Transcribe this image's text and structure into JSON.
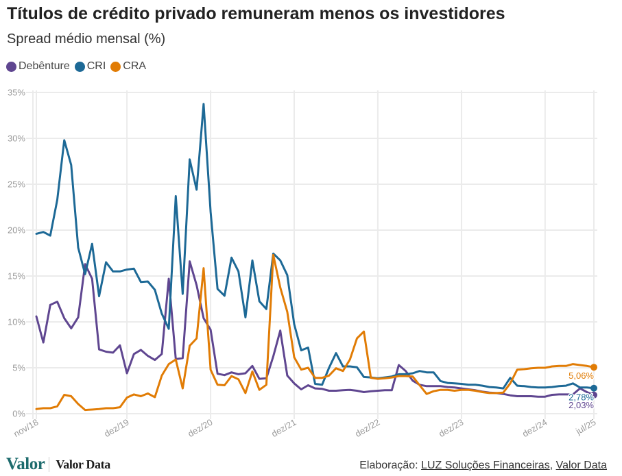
{
  "header": {
    "title": "Títulos de crédito privado remuneram menos os investidores",
    "subtitle": "Spread médio mensal (%)"
  },
  "legend": [
    {
      "label": "Debênture",
      "color": "#5F4690"
    },
    {
      "label": "CRI",
      "color": "#1D6996"
    },
    {
      "label": "CRA",
      "color": "#E17C05"
    }
  ],
  "footer": {
    "prefix": "Elaboração: ",
    "source1": "LUZ Soluções Financeiras",
    "separator": ", ",
    "source2": "Valor Data"
  },
  "branding": {
    "logo_valor": "Valor",
    "logo_valor_data": "Valor Data"
  },
  "chart_data": {
    "type": "line",
    "title": "Títulos de crédito privado remuneram menos os investidores",
    "subtitle": "Spread médio mensal (%)",
    "xlabel": "",
    "ylabel": "",
    "ylim": [
      0,
      35
    ],
    "grid": true,
    "legend_position": "top-left",
    "yticks": [
      0,
      5,
      10,
      15,
      20,
      25,
      30,
      35
    ],
    "ytick_labels": [
      "0%",
      "5%",
      "10%",
      "15%",
      "20%",
      "25%",
      "30%",
      "35%"
    ],
    "xtick_labels": [
      "nov/18",
      "dez/19",
      "dez/20",
      "dez/21",
      "dez/22",
      "dez/23",
      "dez/24",
      "jul/25"
    ],
    "x": [
      "nov/18",
      "dez/18",
      "jan/19",
      "fev/19",
      "mar/19",
      "abr/19",
      "mai/19",
      "jun/19",
      "jul/19",
      "ago/19",
      "set/19",
      "out/19",
      "nov/19",
      "dez/19",
      "jan/20",
      "fev/20",
      "mar/20",
      "abr/20",
      "mai/20",
      "jun/20",
      "jul/20",
      "ago/20",
      "set/20",
      "out/20",
      "nov/20",
      "dez/20",
      "jan/21",
      "fev/21",
      "mar/21",
      "abr/21",
      "mai/21",
      "jun/21",
      "jul/21",
      "ago/21",
      "set/21",
      "out/21",
      "nov/21",
      "dez/21",
      "jan/22",
      "fev/22",
      "mar/22",
      "abr/22",
      "mai/22",
      "jun/22",
      "jul/22",
      "ago/22",
      "set/22",
      "out/22",
      "nov/22",
      "dez/22",
      "jan/23",
      "fev/23",
      "mar/23",
      "abr/23",
      "mai/23",
      "jun/23",
      "jul/23",
      "ago/23",
      "set/23",
      "out/23",
      "nov/23",
      "dez/23",
      "jan/24",
      "fev/24",
      "mar/24",
      "abr/24",
      "mai/24",
      "jun/24",
      "jul/24",
      "ago/24",
      "set/24",
      "out/24",
      "nov/24",
      "dez/24",
      "jan/25",
      "fev/25",
      "mar/25",
      "abr/25",
      "mai/25",
      "jun/25",
      "jul/25"
    ],
    "series": [
      {
        "name": "Debênture",
        "color": "#5F4690",
        "end_label": "2,03%",
        "values": [
          10.6,
          7.75,
          11.85,
          12.2,
          10.4,
          9.3,
          10.5,
          16.3,
          14.7,
          7.0,
          6.75,
          6.65,
          7.45,
          4.4,
          6.5,
          6.95,
          6.3,
          5.85,
          6.5,
          14.7,
          5.95,
          6.05,
          16.6,
          14.0,
          10.4,
          9.15,
          4.35,
          4.2,
          4.5,
          4.3,
          4.4,
          5.2,
          3.8,
          3.85,
          6.25,
          9.05,
          4.15,
          3.3,
          2.65,
          3.1,
          2.75,
          2.7,
          2.5,
          2.5,
          2.55,
          2.6,
          2.5,
          2.35,
          2.45,
          2.5,
          2.55,
          2.55,
          5.3,
          4.65,
          3.6,
          3.15,
          3.0,
          3.0,
          3.0,
          2.9,
          2.85,
          2.75,
          2.65,
          2.55,
          2.4,
          2.3,
          2.25,
          2.15,
          2.0,
          1.9,
          1.9,
          1.9,
          1.85,
          1.85,
          2.05,
          2.1,
          2.1,
          2.1,
          2.75,
          2.35,
          2.03
        ]
      },
      {
        "name": "CRI",
        "color": "#1D6996",
        "end_label": "2,78%",
        "values": [
          19.6,
          19.8,
          19.4,
          23.3,
          29.8,
          27.1,
          18.1,
          15.2,
          18.5,
          12.8,
          16.5,
          15.5,
          15.5,
          15.7,
          15.8,
          14.35,
          14.4,
          13.5,
          10.9,
          9.25,
          23.7,
          13.05,
          27.7,
          24.4,
          33.75,
          22.0,
          13.6,
          12.85,
          17.0,
          15.5,
          10.5,
          16.7,
          12.25,
          11.4,
          17.45,
          16.7,
          15.1,
          9.75,
          6.9,
          7.2,
          3.25,
          3.15,
          5.0,
          6.6,
          5.15,
          5.15,
          5.05,
          4.0,
          3.95,
          3.85,
          3.95,
          4.05,
          4.3,
          4.3,
          4.4,
          4.65,
          4.5,
          4.5,
          3.55,
          3.35,
          3.3,
          3.25,
          3.15,
          3.15,
          3.05,
          2.9,
          2.85,
          2.75,
          3.9,
          3.05,
          3.0,
          2.9,
          2.85,
          2.85,
          2.9,
          3.0,
          3.05,
          3.3,
          2.85,
          2.85,
          2.78
        ]
      },
      {
        "name": "CRA",
        "color": "#E17C05",
        "end_label": "5,06%",
        "values": [
          0.5,
          0.6,
          0.6,
          0.8,
          2.05,
          1.9,
          1.05,
          0.4,
          0.45,
          0.5,
          0.6,
          0.6,
          0.7,
          1.75,
          2.1,
          1.9,
          2.2,
          1.8,
          4.15,
          5.4,
          5.9,
          2.75,
          7.4,
          8.2,
          15.85,
          4.8,
          3.15,
          3.1,
          4.1,
          3.75,
          2.25,
          4.6,
          2.6,
          3.15,
          17.3,
          13.75,
          11.1,
          6.15,
          4.8,
          5.0,
          3.9,
          3.9,
          4.15,
          4.95,
          4.65,
          5.9,
          8.2,
          8.95,
          3.9,
          3.8,
          3.85,
          3.95,
          4.1,
          4.1,
          4.05,
          3.1,
          2.15,
          2.45,
          2.6,
          2.6,
          2.5,
          2.6,
          2.6,
          2.5,
          2.35,
          2.25,
          2.25,
          2.3,
          3.3,
          4.8,
          4.85,
          4.95,
          5.0,
          5.0,
          5.15,
          5.2,
          5.2,
          5.4,
          5.3,
          5.2,
          5.06
        ]
      }
    ]
  }
}
